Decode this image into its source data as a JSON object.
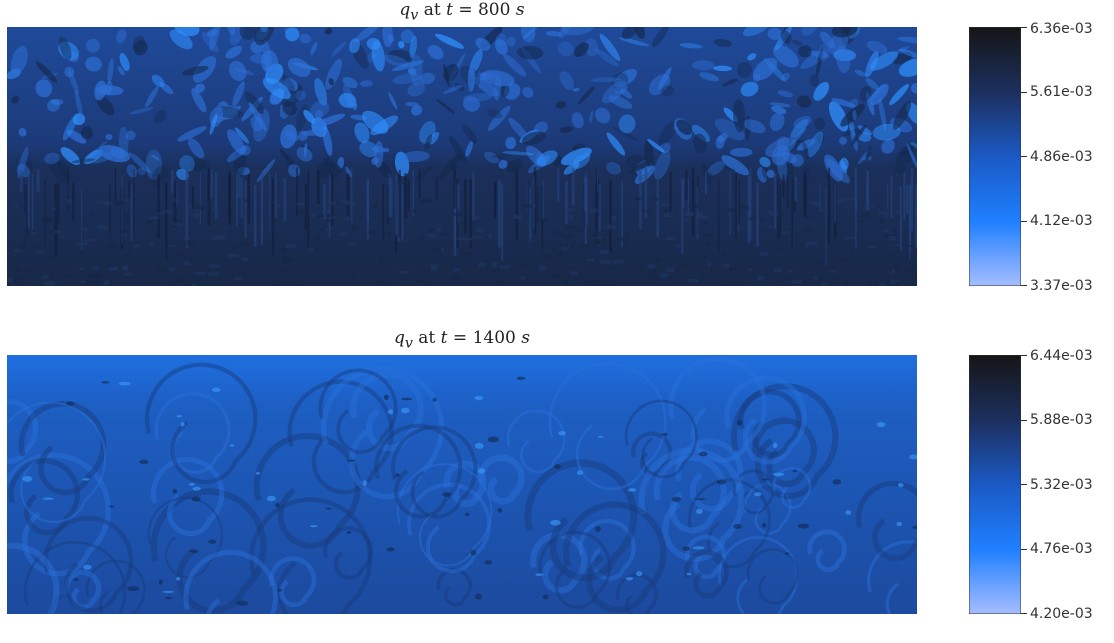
{
  "chart_data": [
    {
      "type": "heatmap",
      "title": {
        "var": "q",
        "sub": "v",
        "mid": " at ",
        "tvar": "t",
        "eq": " = ",
        "value": "800",
        "unit": "s"
      },
      "colorbar": {
        "ticks": [
          "6.36e-03",
          "5.61e-03",
          "4.86e-03",
          "4.12e-03",
          "3.37e-03"
        ],
        "range": [
          0.00337,
          0.00636
        ],
        "colormap": [
          "#a6bdff",
          "#1f7fff",
          "#1b59c4",
          "#1c2f5e",
          "#151515"
        ]
      },
      "dominant_colors": {
        "upper_turbulent": "#1c3a78",
        "lower_layer": "#182848",
        "highlight": "#2f8fff"
      }
    },
    {
      "type": "heatmap",
      "title": {
        "var": "q",
        "sub": "v",
        "mid": " at ",
        "tvar": "t",
        "eq": " = ",
        "value": "1400",
        "unit": "s"
      },
      "colorbar": {
        "ticks": [
          "6.44e-03",
          "5.88e-03",
          "5.32e-03",
          "4.76e-03",
          "4.20e-03"
        ],
        "range": [
          0.0042,
          0.00644
        ],
        "colormap": [
          "#a6bdff",
          "#1f7fff",
          "#1b59c4",
          "#1c2f5e",
          "#151515"
        ]
      },
      "dominant_colors": {
        "top": "#1e6fe0",
        "bulk": "#1c4a9e",
        "swirl_dark": "#183a7a",
        "highlight": "#3a9cff"
      }
    }
  ]
}
